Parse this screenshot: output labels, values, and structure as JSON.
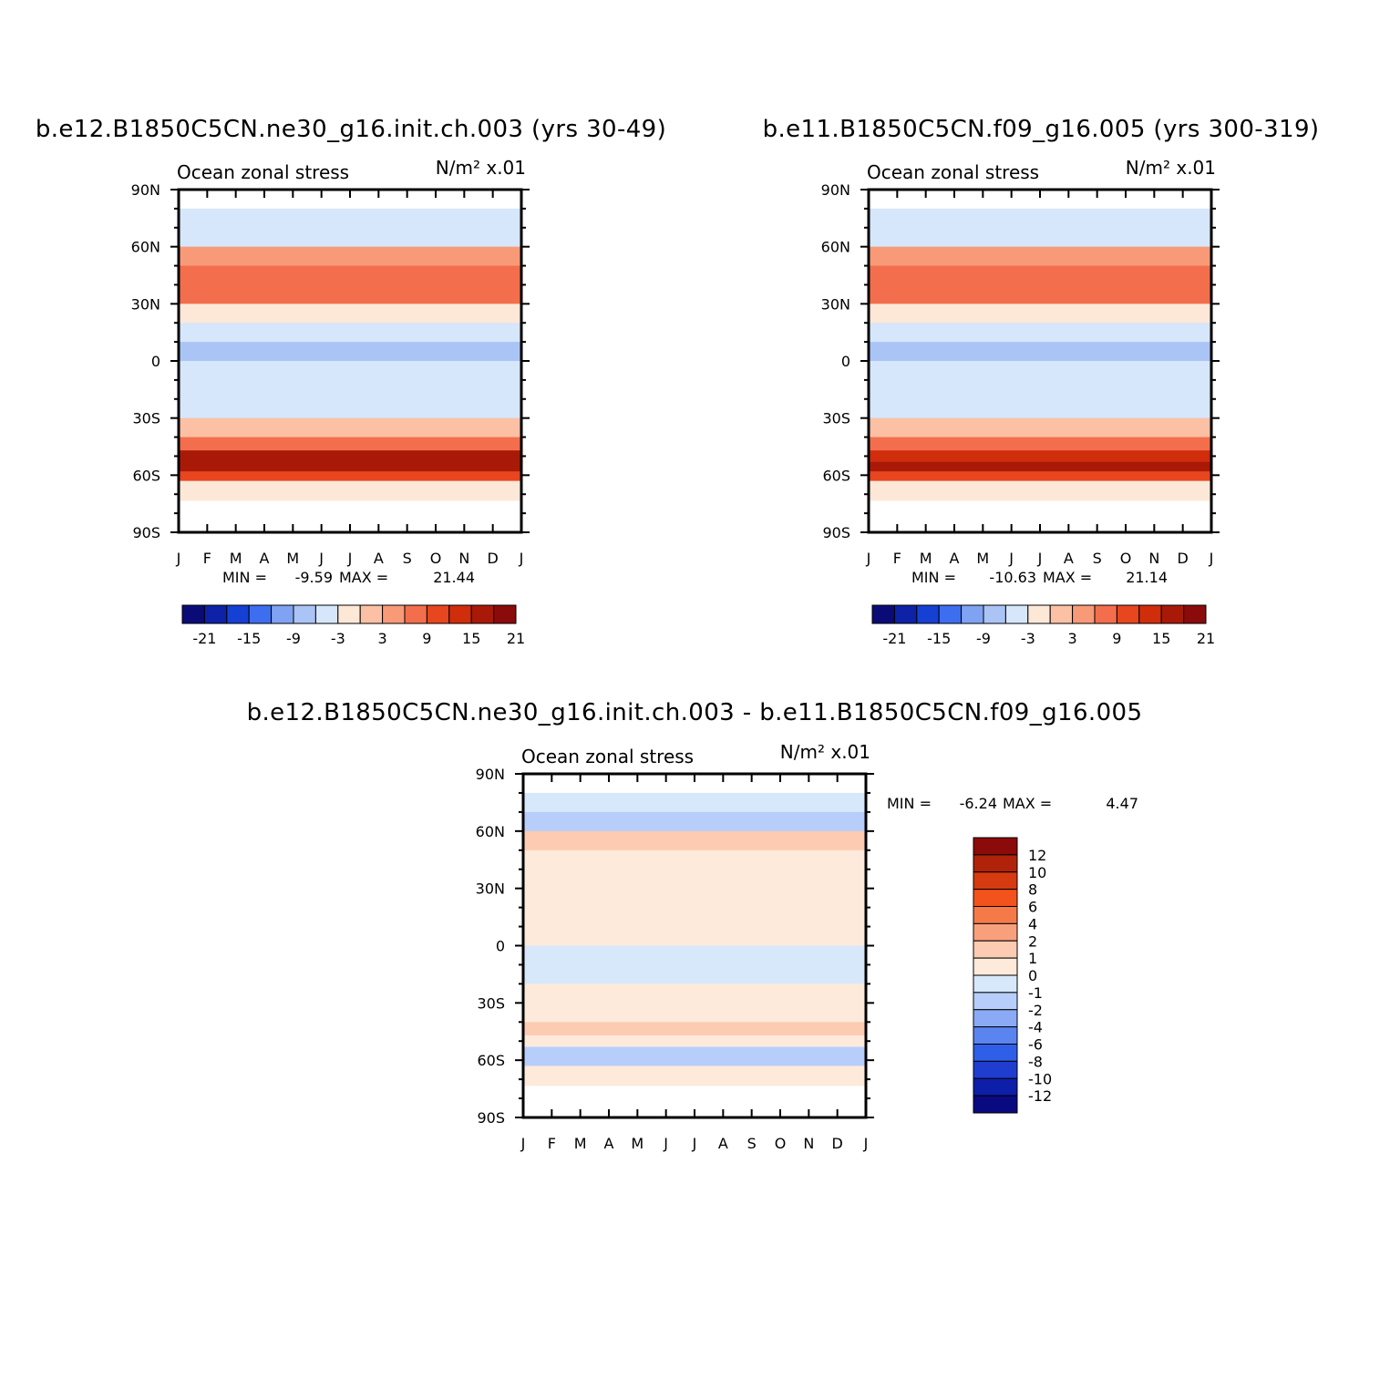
{
  "chart_data": [
    {
      "type": "heatmap",
      "title": "b.e12.B1850C5CN.ne30_g16.init.ch.003 (yrs 30-49)",
      "subtitle_left": "Ocean zonal stress",
      "subtitle_right": "N/m² x.01",
      "x_ticks": [
        "J",
        "F",
        "M",
        "A",
        "M",
        "J",
        "J",
        "A",
        "S",
        "O",
        "N",
        "D",
        "J"
      ],
      "y_ticks": [
        "90N",
        "60N",
        "30N",
        "0",
        "30S",
        "60S",
        "90S"
      ],
      "stats": {
        "min_label": "MIN =",
        "min": "-9.59",
        "max_label": "MAX =",
        "max": "21.44"
      },
      "colorbar": {
        "labels": [
          "-21",
          "-15",
          "-9",
          "-3",
          "3",
          "9",
          "15",
          "21"
        ],
        "colors": [
          "#0b0b78",
          "#0d22a6",
          "#1540d4",
          "#3d6ef0",
          "#7fa3f2",
          "#aac4f5",
          "#d6e6fb",
          "#fde8d8",
          "#fcc0a4",
          "#f89a78",
          "#f36e4c",
          "#e8461f",
          "#d02d0c",
          "#a81a07",
          "#8b0a0a"
        ]
      },
      "z_profile": {
        "lat": [
          75,
          65,
          55,
          45,
          35,
          25,
          15,
          5,
          -5,
          -15,
          -25,
          -35,
          -45,
          -52,
          -58,
          -63,
          -68
        ],
        "value": [
          -3,
          -2,
          5,
          10,
          8,
          1,
          -3,
          -7,
          -2,
          -3,
          -4,
          2,
          9,
          17,
          19,
          12,
          0
        ]
      }
    },
    {
      "type": "heatmap",
      "title": "b.e11.B1850C5CN.f09_g16.005 (yrs 300-319)",
      "subtitle_left": "Ocean zonal stress",
      "subtitle_right": "N/m² x.01",
      "x_ticks": [
        "J",
        "F",
        "M",
        "A",
        "M",
        "J",
        "J",
        "A",
        "S",
        "O",
        "N",
        "D",
        "J"
      ],
      "y_ticks": [
        "90N",
        "60N",
        "30N",
        "0",
        "30S",
        "60S",
        "90S"
      ],
      "stats": {
        "min_label": "MIN =",
        "min": "-10.63",
        "max_label": "MAX =",
        "max": "21.14"
      },
      "colorbar": {
        "labels": [
          "-21",
          "-15",
          "-9",
          "-3",
          "3",
          "9",
          "15",
          "21"
        ],
        "colors": [
          "#0b0b78",
          "#0d22a6",
          "#1540d4",
          "#3d6ef0",
          "#7fa3f2",
          "#aac4f5",
          "#d6e6fb",
          "#fde8d8",
          "#fcc0a4",
          "#f89a78",
          "#f36e4c",
          "#e8461f",
          "#d02d0c",
          "#a81a07",
          "#8b0a0a"
        ]
      },
      "z_profile": {
        "lat": [
          75,
          65,
          55,
          45,
          35,
          25,
          15,
          5,
          -5,
          -15,
          -25,
          -35,
          -45,
          -52,
          -58,
          -63,
          -68
        ],
        "value": [
          -3,
          -2,
          5,
          10,
          8,
          1,
          -3,
          -7,
          -2,
          -3,
          -4,
          2,
          9,
          16,
          18,
          11,
          0
        ]
      }
    },
    {
      "type": "heatmap",
      "title": "b.e12.B1850C5CN.ne30_g16.init.ch.003 - b.e11.B1850C5CN.f09_g16.005",
      "subtitle_left": "Ocean zonal stress",
      "subtitle_right": "N/m² x.01",
      "x_ticks": [
        "J",
        "F",
        "M",
        "A",
        "M",
        "J",
        "J",
        "A",
        "S",
        "O",
        "N",
        "D",
        "J"
      ],
      "y_ticks": [
        "90N",
        "60N",
        "30N",
        "0",
        "30S",
        "60S",
        "90S"
      ],
      "stats": {
        "min_label": "MIN =",
        "min": "-6.24",
        "max_label": "MAX =",
        "max": "4.47"
      },
      "colorbar": {
        "labels": [
          "12",
          "10",
          "8",
          "6",
          "4",
          "2",
          "1",
          "0",
          "-1",
          "-2",
          "-4",
          "-6",
          "-8",
          "-10",
          "-12"
        ],
        "colors": [
          "#8b0a0a",
          "#b0230a",
          "#d63a10",
          "#f2531c",
          "#f57a48",
          "#f8a07c",
          "#fdcbb2",
          "#fdeadb",
          "#d8e8fb",
          "#b7cefa",
          "#8aaaf5",
          "#5a84f0",
          "#2f5ee8",
          "#1f3ed0",
          "#0d1fa8",
          "#0a0a80"
        ]
      },
      "z_profile": {
        "lat": [
          75,
          65,
          55,
          45,
          35,
          25,
          15,
          5,
          -5,
          -15,
          -25,
          -35,
          -45,
          -52,
          -58,
          -63,
          -68
        ],
        "value": [
          -1,
          -2,
          1,
          0.5,
          0.5,
          0.5,
          0.5,
          0.5,
          -0.5,
          -0.5,
          0.5,
          0.5,
          1.5,
          0.5,
          -2,
          -1.5,
          0
        ]
      }
    }
  ]
}
